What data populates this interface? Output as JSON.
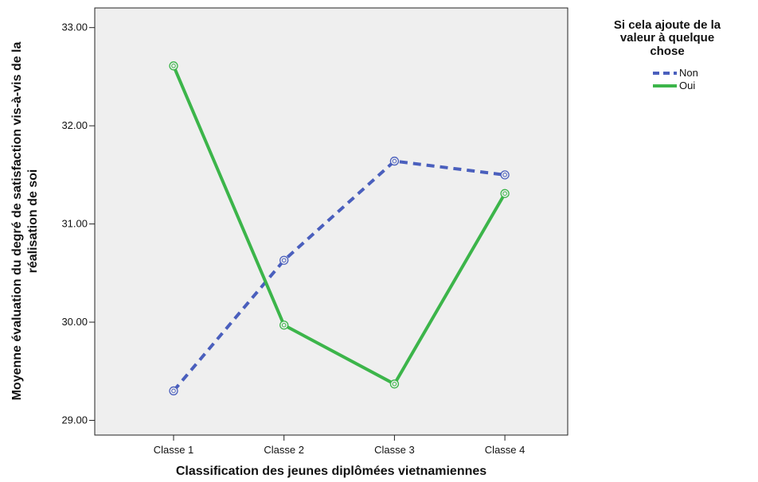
{
  "chart_data": {
    "type": "line",
    "categories": [
      "Classe 1",
      "Classe 2",
      "Classe 3",
      "Classe 4"
    ],
    "series": [
      {
        "name": "Non",
        "values": [
          29.3,
          30.63,
          31.64,
          31.5
        ],
        "color": "#4a5fbd",
        "line_style": "dashed"
      },
      {
        "name": "Oui",
        "values": [
          32.61,
          29.97,
          29.37,
          31.31
        ],
        "color": "#3cb54a",
        "line_style": "solid"
      }
    ],
    "xlabel": "Classification des jeunes diplômées vietnamiennes",
    "ylabel_lines": [
      "Moyenne évaluation du degré de satisfaction vis-à-vis de la",
      "réalisation de soi"
    ],
    "ylim": [
      28.85,
      33.2
    ],
    "yticks": [
      "29.00",
      "30.00",
      "31.00",
      "32.00",
      "33.00"
    ],
    "grid": false,
    "plot_background": "#efefef",
    "legend": {
      "title_lines": [
        "Si cela ajoute de la",
        "valeur à quelque",
        "chose"
      ],
      "placement": "right"
    }
  }
}
